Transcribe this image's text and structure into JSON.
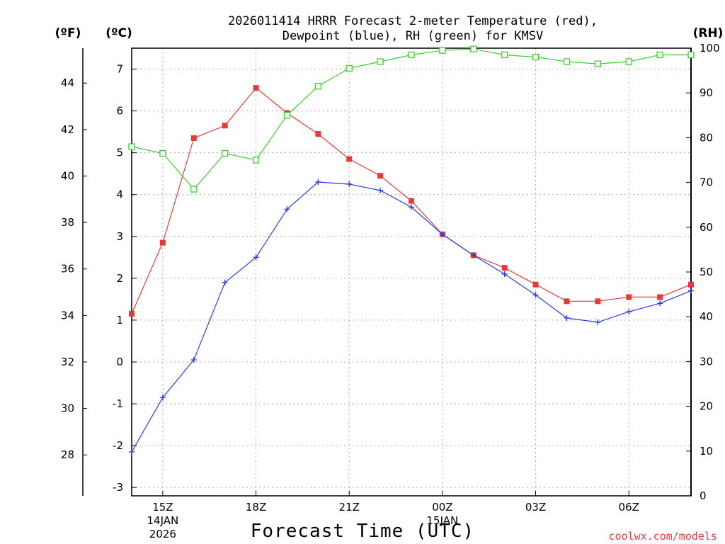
{
  "chart_data": {
    "type": "line",
    "title_line1": "2026011414 HRRR Forecast 2-meter Temperature (red),",
    "title_line2": "Dewpoint (blue), RH (green) for KMSV",
    "xlabel": "Forecast Time (UTC)",
    "credit": "coolwx.com/models",
    "unit_f": "(ºF)",
    "unit_c": "(ºC)",
    "unit_rh": "(RH)",
    "x_hours": [
      14,
      15,
      16,
      17,
      18,
      19,
      20,
      21,
      22,
      23,
      24,
      25,
      26,
      27,
      28,
      29,
      30,
      31,
      32
    ],
    "x_range": [
      14,
      32
    ],
    "x_ticks": [
      {
        "hour": 15,
        "label": "15Z",
        "sub1": "14JAN",
        "sub2": "2026"
      },
      {
        "hour": 18,
        "label": "18Z",
        "sub1": "",
        "sub2": ""
      },
      {
        "hour": 21,
        "label": "21Z",
        "sub1": "",
        "sub2": ""
      },
      {
        "hour": 24,
        "label": "00Z",
        "sub1": "15JAN",
        "sub2": ""
      },
      {
        "hour": 27,
        "label": "03Z",
        "sub1": "",
        "sub2": ""
      },
      {
        "hour": 30,
        "label": "06Z",
        "sub1": "",
        "sub2": ""
      }
    ],
    "celsius_range": [
      -3.2,
      7.5
    ],
    "celsius_ticks": [
      "-3",
      "-2",
      "-1",
      "0",
      "1",
      "2",
      "3",
      "4",
      "5",
      "6",
      "7"
    ],
    "fahrenheit_ticks": [
      "28",
      "30",
      "32",
      "34",
      "36",
      "38",
      "40",
      "42",
      "44"
    ],
    "rh_range": [
      0,
      100
    ],
    "rh_ticks": [
      "0",
      "10",
      "20",
      "30",
      "40",
      "50",
      "60",
      "70",
      "80",
      "90",
      "100"
    ],
    "series": [
      {
        "name": "Temperature",
        "color": "#e83838",
        "marker": "filled-square",
        "axis": "celsius",
        "values": [
          1.15,
          2.85,
          5.35,
          5.65,
          6.55,
          5.95,
          5.45,
          4.85,
          4.45,
          3.85,
          3.05,
          2.55,
          2.25,
          1.85,
          1.45,
          1.45,
          1.55,
          1.55,
          1.85
        ]
      },
      {
        "name": "Dewpoint",
        "color": "#2a3ee0",
        "marker": "plus",
        "axis": "celsius",
        "values": [
          -2.15,
          -0.85,
          0.05,
          1.9,
          2.5,
          3.65,
          4.3,
          4.25,
          4.1,
          3.7,
          3.05,
          2.55,
          2.1,
          1.6,
          1.05,
          0.95,
          1.2,
          1.4,
          1.7
        ]
      },
      {
        "name": "RH",
        "color": "#3ad02c",
        "marker": "open-square",
        "axis": "rh",
        "values": [
          78,
          76.5,
          68.5,
          76.5,
          75,
          85,
          91.5,
          95.5,
          97,
          98.5,
          99.5,
          99.8,
          98.5,
          98,
          97,
          96.5,
          97,
          98.5,
          98.5
        ]
      }
    ]
  }
}
